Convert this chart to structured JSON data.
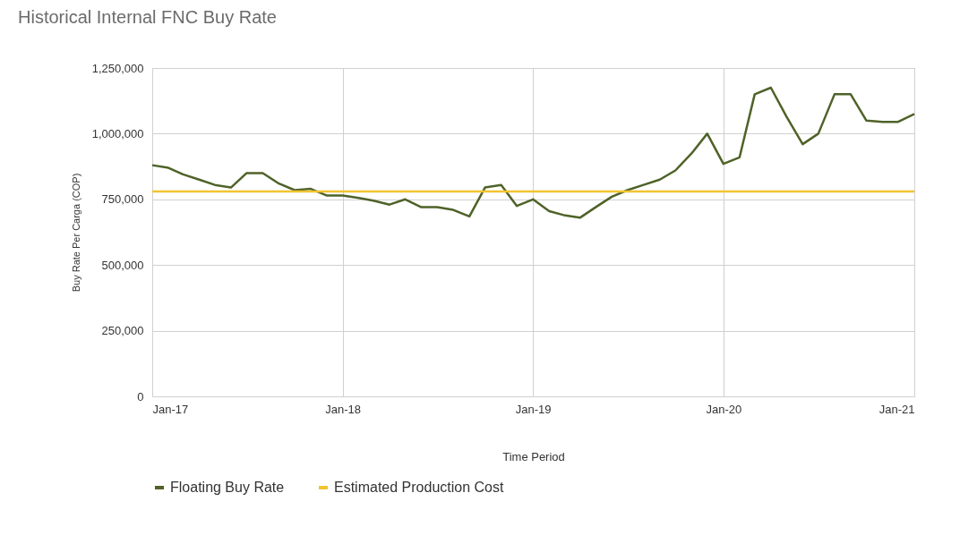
{
  "chart_data": {
    "type": "line",
    "title": "Historical Internal FNC Buy Rate",
    "xlabel": "Time Period",
    "ylabel": "Buy Rate Per Carga (COP)",
    "x": [
      "2017-01",
      "2017-02",
      "2017-03",
      "2017-04",
      "2017-05",
      "2017-06",
      "2017-07",
      "2017-08",
      "2017-09",
      "2017-10",
      "2017-11",
      "2017-12",
      "2018-01",
      "2018-02",
      "2018-03",
      "2018-04",
      "2018-05",
      "2018-06",
      "2018-07",
      "2018-08",
      "2018-09",
      "2018-10",
      "2018-11",
      "2018-12",
      "2019-01",
      "2019-02",
      "2019-03",
      "2019-04",
      "2019-05",
      "2019-06",
      "2019-07",
      "2019-08",
      "2019-09",
      "2019-10",
      "2019-11",
      "2019-12",
      "2020-01",
      "2020-02",
      "2020-03",
      "2020-04",
      "2020-05",
      "2020-06",
      "2020-07",
      "2020-08",
      "2020-09",
      "2020-10",
      "2020-11",
      "2020-12",
      "2021-01"
    ],
    "series": [
      {
        "name": "Floating Buy Rate",
        "color": "#4f6228",
        "values": [
          880000,
          870000,
          845000,
          825000,
          805000,
          795000,
          850000,
          850000,
          810000,
          785000,
          790000,
          765000,
          765000,
          755000,
          745000,
          730000,
          750000,
          720000,
          720000,
          710000,
          685000,
          795000,
          805000,
          725000,
          750000,
          705000,
          690000,
          680000,
          720000,
          760000,
          785000,
          805000,
          825000,
          860000,
          925000,
          1000000,
          885000,
          910000,
          1150000,
          1175000,
          1065000,
          960000,
          1000000,
          1150000,
          1150000,
          1050000,
          1045000,
          1045000,
          1075000
        ]
      },
      {
        "name": "Estimated Production Cost",
        "color": "#f2c431",
        "x": [
          "2017-01",
          "2021-01"
        ],
        "values": [
          780000,
          780000
        ]
      }
    ],
    "xlim": [
      "2017-01",
      "2021-01"
    ],
    "xticks": [
      {
        "value": "2017-01",
        "label": "Jan-17"
      },
      {
        "value": "2018-01",
        "label": "Jan-18"
      },
      {
        "value": "2019-01",
        "label": "Jan-19"
      },
      {
        "value": "2020-01",
        "label": "Jan-20"
      },
      {
        "value": "2021-01",
        "label": "Jan-21"
      }
    ],
    "ylim": [
      0,
      1250000
    ],
    "yticks": [
      0,
      {
        "value": 250000,
        "label": "250,000"
      },
      {
        "value": 500000,
        "label": "500,000"
      },
      {
        "value": 750000,
        "label": "750,000"
      },
      {
        "value": 1000000,
        "label": "1,000,000"
      },
      {
        "value": 1250000,
        "label": "1,250,000"
      }
    ],
    "grid": true,
    "legend": "bottom"
  }
}
